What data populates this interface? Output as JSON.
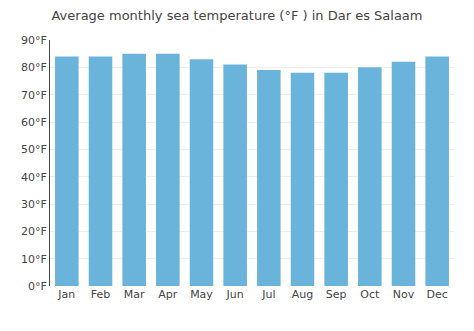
{
  "chart_data": {
    "type": "bar",
    "title": "Average monthly sea temperature (°F ) in Dar es Salaam",
    "categories": [
      "Jan",
      "Feb",
      "Mar",
      "Apr",
      "May",
      "Jun",
      "Jul",
      "Aug",
      "Sep",
      "Oct",
      "Nov",
      "Dec"
    ],
    "values": [
      84,
      84,
      85,
      85,
      83,
      81,
      79,
      78,
      78,
      80,
      82,
      84
    ],
    "color": "#6ab4dc",
    "ylim": [
      0,
      90
    ],
    "yticks": [
      {
        "value": 0,
        "label": "0°F"
      },
      {
        "value": 10,
        "label": "10°F"
      },
      {
        "value": 20,
        "label": "20°F"
      },
      {
        "value": 30,
        "label": "30°F"
      },
      {
        "value": 40,
        "label": "40°F"
      },
      {
        "value": 50,
        "label": "50°F"
      },
      {
        "value": 60,
        "label": "60°F"
      },
      {
        "value": 70,
        "label": "70°F"
      },
      {
        "value": 80,
        "label": "80°F"
      },
      {
        "value": 90,
        "label": "90°F"
      }
    ],
    "grid": true
  }
}
